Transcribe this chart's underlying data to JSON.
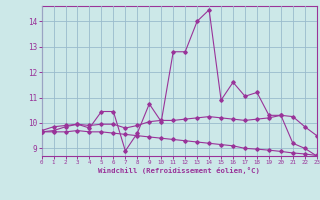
{
  "xlabel": "Windchill (Refroidissement éolien,°C)",
  "bg_color": "#cce8e8",
  "line_color": "#993399",
  "grid_color": "#99bbcc",
  "x_values": [
    0,
    1,
    2,
    3,
    4,
    5,
    6,
    7,
    8,
    9,
    10,
    11,
    12,
    13,
    14,
    15,
    16,
    17,
    18,
    19,
    20,
    21,
    22,
    23
  ],
  "line_jagged": [
    9.7,
    9.85,
    9.9,
    9.95,
    9.8,
    10.45,
    10.45,
    8.9,
    9.6,
    10.75,
    10.05,
    12.8,
    12.8,
    14.0,
    14.45,
    10.9,
    11.6,
    11.05,
    11.2,
    10.3,
    10.3,
    9.2,
    9.0,
    8.7
  ],
  "line_upper": [
    9.65,
    9.7,
    9.85,
    9.95,
    9.9,
    9.95,
    9.95,
    9.8,
    9.9,
    10.05,
    10.1,
    10.1,
    10.15,
    10.2,
    10.25,
    10.2,
    10.15,
    10.1,
    10.15,
    10.2,
    10.3,
    10.25,
    9.85,
    9.5
  ],
  "line_lower": [
    9.65,
    9.65,
    9.65,
    9.7,
    9.65,
    9.65,
    9.6,
    9.55,
    9.5,
    9.45,
    9.4,
    9.35,
    9.3,
    9.25,
    9.2,
    9.15,
    9.1,
    9.0,
    8.97,
    8.93,
    8.88,
    8.82,
    8.78,
    8.72
  ],
  "xlim": [
    0,
    23
  ],
  "ylim": [
    8.7,
    14.6
  ],
  "yticks": [
    9,
    10,
    11,
    12,
    13,
    14
  ],
  "xticks": [
    0,
    1,
    2,
    3,
    4,
    5,
    6,
    7,
    8,
    9,
    10,
    11,
    12,
    13,
    14,
    15,
    16,
    17,
    18,
    19,
    20,
    21,
    22,
    23
  ]
}
